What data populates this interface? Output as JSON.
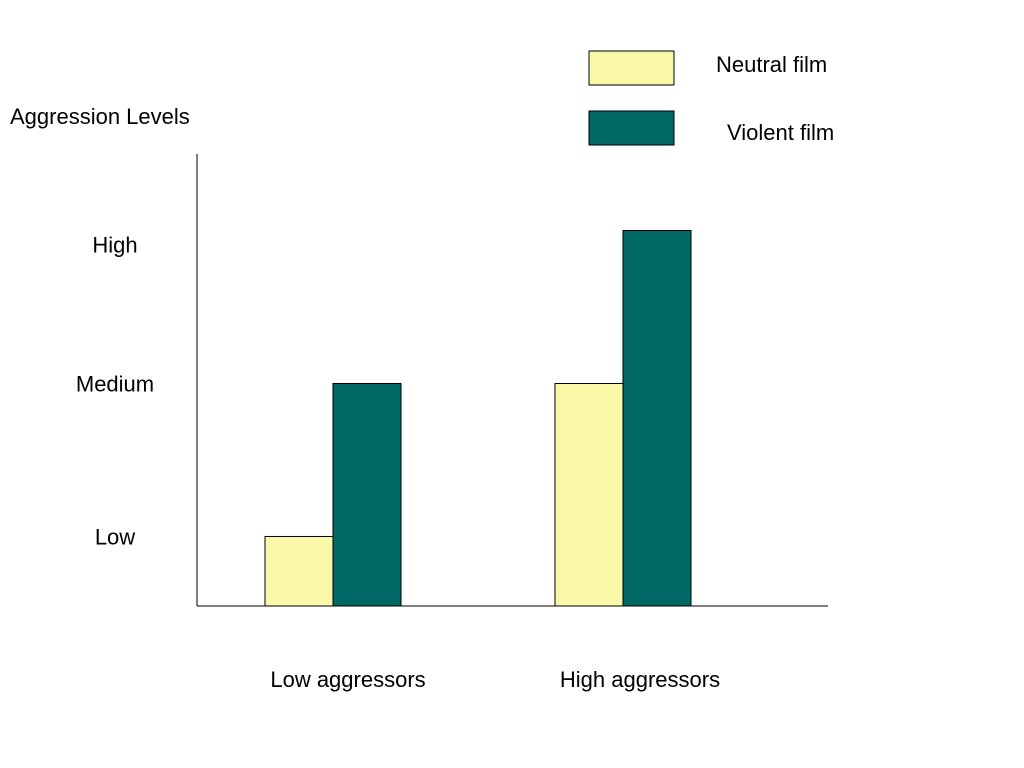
{
  "chart_data": {
    "type": "bar",
    "ylabel": "Aggression Levels",
    "xlabel": "",
    "categories": [
      "Low aggressors",
      "High aggressors"
    ],
    "yticks": [
      {
        "label": "Low",
        "value": 0.5
      },
      {
        "label": "Medium",
        "value": 1.6
      },
      {
        "label": "High",
        "value": 2.6
      }
    ],
    "ylim": [
      0,
      3.25
    ],
    "series": [
      {
        "name": "Neutral film",
        "color": "#f8f8a8",
        "values": [
          0.5,
          1.6
        ]
      },
      {
        "name": "Violent film",
        "color": "#006966",
        "values": [
          1.6,
          2.7
        ]
      }
    ],
    "legend": "top-right",
    "grid": false
  }
}
